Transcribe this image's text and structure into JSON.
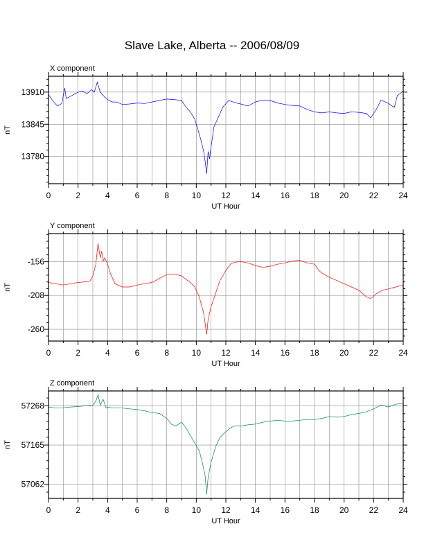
{
  "title": "Slave Lake, Alberta -- 2006/08/09",
  "chart_data": [
    {
      "type": "line",
      "panel_title": "X component",
      "xlabel": "UT Hour",
      "ylabel": "nT",
      "color": "#0000ff",
      "xlim": [
        0,
        24
      ],
      "ylim": [
        13725,
        13942
      ],
      "xticks": [
        0,
        2,
        4,
        6,
        8,
        10,
        12,
        14,
        16,
        18,
        20,
        22,
        24
      ],
      "yticks": [
        13780,
        13845,
        13910
      ],
      "grid": true,
      "series": [
        {
          "x": [
            0,
            0.3,
            0.6,
            0.9,
            1.1,
            1.2,
            1.4,
            1.7,
            2.0,
            2.3,
            2.6,
            2.9,
            3.1,
            3.3,
            3.5,
            3.8,
            4.0,
            4.3,
            4.6,
            5.0,
            5.5,
            6.0,
            6.5,
            7.0,
            7.5,
            8.0,
            8.5,
            9.0,
            9.3,
            9.6,
            9.9,
            10.1,
            10.3,
            10.5,
            10.6,
            10.7,
            10.8,
            10.9,
            11.0,
            11.2,
            11.5,
            11.8,
            12.2,
            12.6,
            13.0,
            13.5,
            14.0,
            14.5,
            15.0,
            15.5,
            16.0,
            16.5,
            17.0,
            17.5,
            18.0,
            18.5,
            19.0,
            19.5,
            20.0,
            20.5,
            21.0,
            21.5,
            21.8,
            22.2,
            22.5,
            23.0,
            23.4,
            23.6,
            24.0
          ],
          "y": [
            13905,
            13892,
            13882,
            13887,
            13918,
            13897,
            13900,
            13905,
            13910,
            13912,
            13907,
            13915,
            13910,
            13930,
            13910,
            13900,
            13895,
            13890,
            13890,
            13885,
            13886,
            13888,
            13887,
            13890,
            13893,
            13896,
            13895,
            13893,
            13880,
            13870,
            13855,
            13835,
            13815,
            13790,
            13770,
            13745,
            13790,
            13775,
            13800,
            13840,
            13860,
            13880,
            13893,
            13889,
            13886,
            13882,
            13890,
            13894,
            13893,
            13888,
            13885,
            13883,
            13882,
            13875,
            13870,
            13868,
            13870,
            13868,
            13867,
            13870,
            13869,
            13867,
            13858,
            13876,
            13894,
            13887,
            13879,
            13903,
            13912
          ]
        }
      ]
    },
    {
      "type": "line",
      "panel_title": "Y component",
      "xlabel": "UT Hour",
      "ylabel": "nT",
      "color": "#ff0000",
      "xlim": [
        0,
        24
      ],
      "ylim": [
        -278,
        -113
      ],
      "xticks": [
        0,
        2,
        4,
        6,
        8,
        10,
        12,
        14,
        16,
        18,
        20,
        22,
        24
      ],
      "yticks": [
        -260,
        -208,
        -156
      ],
      "grid": true,
      "series": [
        {
          "x": [
            0,
            0.5,
            1.0,
            1.5,
            2.0,
            2.5,
            2.8,
            3.0,
            3.2,
            3.35,
            3.5,
            3.6,
            3.7,
            3.8,
            4.0,
            4.2,
            4.5,
            5.0,
            5.5,
            6.0,
            6.5,
            7.0,
            7.5,
            8.0,
            8.5,
            9.0,
            9.3,
            9.6,
            9.9,
            10.2,
            10.5,
            10.7,
            10.8,
            11.0,
            11.3,
            11.6,
            12.0,
            12.3,
            12.6,
            13.0,
            13.5,
            14.0,
            14.5,
            15.0,
            15.5,
            16.0,
            16.5,
            17.0,
            17.5,
            18.0,
            18.3,
            18.6,
            19.0,
            19.5,
            20.0,
            20.5,
            21.0,
            21.5,
            21.8,
            22.2,
            22.6,
            23.0,
            23.5,
            24.0
          ],
          "y": [
            -188,
            -190,
            -192,
            -190,
            -188,
            -187,
            -186,
            -178,
            -160,
            -128,
            -150,
            -140,
            -155,
            -150,
            -160,
            -175,
            -190,
            -195,
            -195,
            -192,
            -190,
            -188,
            -182,
            -176,
            -175,
            -178,
            -183,
            -188,
            -195,
            -210,
            -235,
            -268,
            -245,
            -225,
            -205,
            -185,
            -170,
            -160,
            -157,
            -156,
            -158,
            -162,
            -165,
            -163,
            -160,
            -158,
            -155,
            -154,
            -158,
            -160,
            -170,
            -175,
            -180,
            -185,
            -190,
            -195,
            -200,
            -210,
            -213,
            -205,
            -200,
            -198,
            -195,
            -192
          ]
        }
      ]
    },
    {
      "type": "line",
      "panel_title": "Z component",
      "xlabel": "UT Hour",
      "ylabel": "nT",
      "color": "#008844",
      "xlim": [
        0,
        24
      ],
      "ylim": [
        57025,
        57307
      ],
      "xticks": [
        0,
        2,
        4,
        6,
        8,
        10,
        12,
        14,
        16,
        18,
        20,
        22,
        24
      ],
      "yticks": [
        57062,
        57165,
        57268
      ],
      "grid": true,
      "series": [
        {
          "x": [
            0,
            0.5,
            1.0,
            1.5,
            2.0,
            2.5,
            3.0,
            3.2,
            3.35,
            3.5,
            3.7,
            3.9,
            4.0,
            4.3,
            4.6,
            5.0,
            5.5,
            6.0,
            6.5,
            7.0,
            7.5,
            8.0,
            8.3,
            8.6,
            9.0,
            9.3,
            9.6,
            9.9,
            10.2,
            10.4,
            10.6,
            10.7,
            10.8,
            11.0,
            11.3,
            11.6,
            12.0,
            12.3,
            12.6,
            13.0,
            13.5,
            14.0,
            14.5,
            15.0,
            15.5,
            16.0,
            16.5,
            17.0,
            17.5,
            18.0,
            18.5,
            19.0,
            19.5,
            20.0,
            20.5,
            21.0,
            21.5,
            22.0,
            22.5,
            23.0,
            23.5,
            24.0
          ],
          "y": [
            57265,
            57262,
            57263,
            57265,
            57266,
            57268,
            57270,
            57280,
            57297,
            57270,
            57285,
            57262,
            57265,
            57262,
            57263,
            57262,
            57260,
            57258,
            57255,
            57250,
            57248,
            57235,
            57220,
            57215,
            57225,
            57210,
            57190,
            57170,
            57150,
            57120,
            57085,
            57035,
            57080,
            57120,
            57160,
            57185,
            57200,
            57210,
            57215,
            57215,
            57218,
            57220,
            57225,
            57228,
            57230,
            57228,
            57228,
            57230,
            57232,
            57232,
            57235,
            57240,
            57238,
            57240,
            57245,
            57248,
            57252,
            57260,
            57270,
            57265,
            57272,
            57275
          ]
        }
      ]
    }
  ]
}
